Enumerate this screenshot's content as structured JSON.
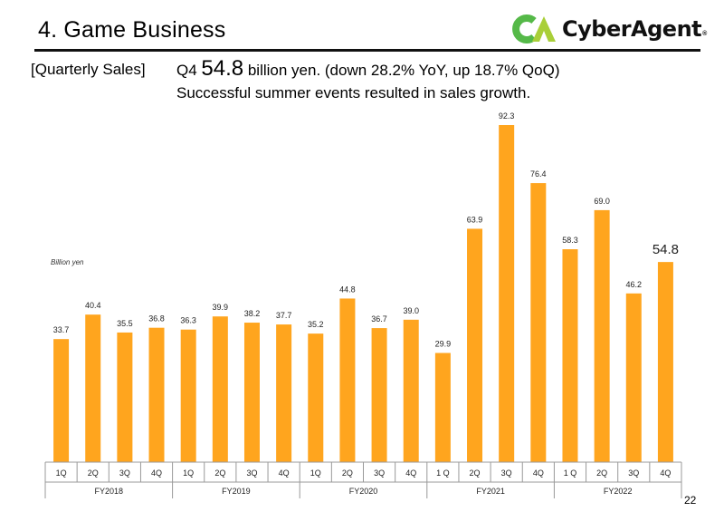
{
  "header": {
    "title": "4. Game Business",
    "logo_text": "CyberAgent",
    "logo_mark": "®"
  },
  "summary": {
    "section_label": "[Quarterly Sales]",
    "headline_prefix": "Q4 ",
    "headline_value": "54.8",
    "headline_suffix": " billion yen. (down 28.2% YoY, up 18.7% QoQ)",
    "subline": "Successful summer events resulted in sales growth."
  },
  "page_number": "22",
  "colors": {
    "bar": "#FFA51E",
    "logo_green": "#55B948",
    "logo_yellow_green": "#A9CF38"
  },
  "chart_data": {
    "type": "bar",
    "unit_label": "Billion yen",
    "categories": [
      "1Q",
      "2Q",
      "3Q",
      "4Q",
      "1Q",
      "2Q",
      "3Q",
      "4Q",
      "1Q",
      "2Q",
      "3Q",
      "4Q",
      "1 Q",
      "2Q",
      "3Q",
      "4Q",
      "1 Q",
      "2Q",
      "3Q",
      "4Q"
    ],
    "value_labels": [
      "33.7",
      "40.4",
      "35.5",
      "36.8",
      "36.3",
      "39.9",
      "38.2",
      "37.7",
      "35.2",
      "44.8",
      "36.7",
      "39.0",
      "29.9",
      "63.9",
      "92.3",
      "76.4",
      "58.3",
      "69.0",
      "46.2",
      "54.8"
    ],
    "values": [
      33.7,
      40.4,
      35.5,
      36.8,
      36.3,
      39.9,
      38.2,
      37.7,
      35.2,
      44.8,
      36.7,
      39.0,
      29.9,
      63.9,
      92.3,
      76.4,
      58.3,
      69.0,
      46.2,
      54.8
    ],
    "groups": [
      {
        "label": "FY2018",
        "count": 4
      },
      {
        "label": "FY2019",
        "count": 4
      },
      {
        "label": "FY2020",
        "count": 4
      },
      {
        "label": "FY2021",
        "count": 4
      },
      {
        "label": "FY2022",
        "count": 4
      }
    ],
    "highlight_index": 19,
    "ylim": [
      0,
      92.3
    ],
    "grid": false,
    "legend": "none"
  }
}
